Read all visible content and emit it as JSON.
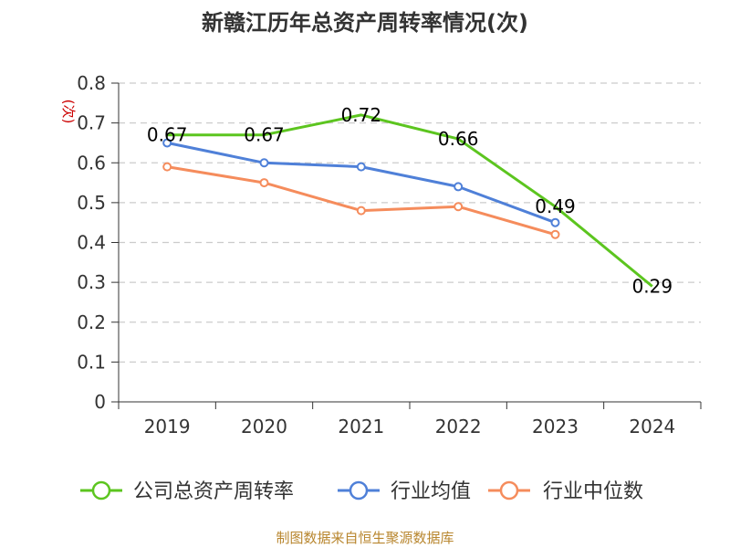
{
  "chart_data": {
    "type": "line",
    "title": "新赣江历年总资产周转率情况(次)",
    "ylabel": "(次)",
    "xlabel": "",
    "categories": [
      "2019",
      "2020",
      "2021",
      "2022",
      "2023",
      "2024"
    ],
    "ylim": [
      0,
      0.8
    ],
    "yticks": [
      "0",
      "0.1",
      "0.2",
      "0.3",
      "0.4",
      "0.5",
      "0.6",
      "0.7",
      "0.8"
    ],
    "grid": true,
    "legend_position": "bottom",
    "series": [
      {
        "name": "公司总资产周转率",
        "color": "#5cc51f",
        "values": [
          0.67,
          0.67,
          0.72,
          0.66,
          0.49,
          0.29
        ],
        "data_labels": [
          "0.67",
          "0.67",
          "0.72",
          "0.66",
          "0.49",
          "0.29"
        ]
      },
      {
        "name": "行业均值",
        "color": "#4f80d8",
        "values": [
          0.65,
          0.6,
          0.59,
          0.54,
          0.45,
          null
        ]
      },
      {
        "name": "行业中位数",
        "color": "#f58c5c",
        "values": [
          0.59,
          0.55,
          0.48,
          0.49,
          0.42,
          null
        ]
      }
    ]
  },
  "source": "制图数据来自恒生聚源数据库"
}
